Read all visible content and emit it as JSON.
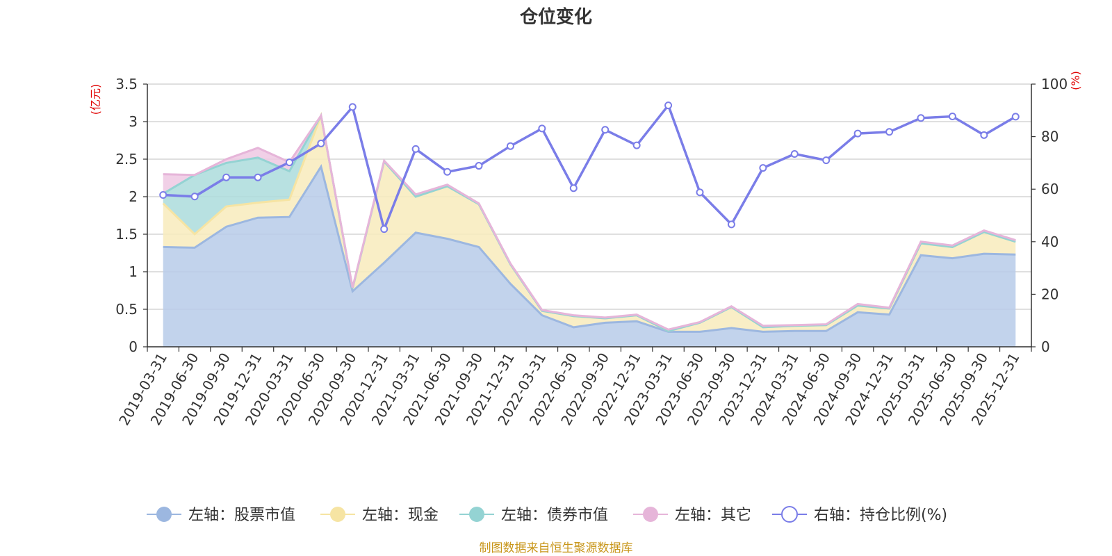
{
  "chart_data": {
    "type": "area",
    "title": "仓位变化",
    "left_axis_unit": "(亿元)",
    "right_axis_unit": "(%)",
    "source": "制图数据来自恒生聚源数据库",
    "categories": [
      "2019-03-31",
      "2019-06-30",
      "2019-09-30",
      "2019-12-31",
      "2020-03-31",
      "2020-06-30",
      "2020-09-30",
      "2020-12-31",
      "2021-03-31",
      "2021-06-30",
      "2021-09-30",
      "2021-12-31",
      "2022-03-31",
      "2022-06-30",
      "2022-09-30",
      "2022-12-31",
      "2023-03-31",
      "2023-06-30",
      "2023-09-30",
      "2023-12-31",
      "2024-03-31",
      "2024-06-30",
      "2024-09-30",
      "2024-12-31",
      "2025-03-31",
      "2025-06-30",
      "2025-09-30",
      "2025-12-31"
    ],
    "left_ylim": [
      0,
      3.5
    ],
    "left_yticks": [
      "0",
      "0.5",
      "1",
      "1.5",
      "2",
      "2.5",
      "3",
      "3.5"
    ],
    "right_ylim": [
      0,
      100
    ],
    "right_yticks": [
      "0",
      "20",
      "40",
      "60",
      "80",
      "100"
    ],
    "grid": true,
    "legend_position": "bottom",
    "series": [
      {
        "name": "左轴：股票市值",
        "axis": "left",
        "kind": "stacked-area",
        "color": "#9cb7e0",
        "fill": "#b7cbe9",
        "values": [
          1.33,
          1.32,
          1.6,
          1.72,
          1.73,
          2.4,
          0.74,
          1.12,
          1.52,
          1.44,
          1.33,
          0.84,
          0.42,
          0.26,
          0.32,
          0.34,
          0.2,
          0.2,
          0.25,
          0.2,
          0.21,
          0.21,
          0.46,
          0.43,
          1.22,
          1.18,
          1.24,
          1.23
        ]
      },
      {
        "name": "左轴：现金",
        "axis": "left",
        "kind": "stacked-area",
        "color": "#f6e4a3",
        "fill": "#f8ebbc",
        "values": [
          0.58,
          0.18,
          0.27,
          0.2,
          0.23,
          0.68,
          0.04,
          1.35,
          0.48,
          0.7,
          0.57,
          0.26,
          0.06,
          0.15,
          0.06,
          0.08,
          0.01,
          0.12,
          0.28,
          0.06,
          0.07,
          0.08,
          0.09,
          0.08,
          0.16,
          0.15,
          0.29,
          0.17
        ]
      },
      {
        "name": "左轴：债券市值",
        "axis": "left",
        "kind": "stacked-area",
        "color": "#94d3d3",
        "fill": "#acdcdc",
        "values": [
          0.13,
          0.79,
          0.58,
          0.6,
          0.38,
          0,
          0,
          0,
          0,
          0,
          0,
          0,
          0,
          0,
          0,
          0,
          0,
          0,
          0,
          0,
          0,
          0,
          0,
          0,
          0,
          0,
          0,
          0
        ]
      },
      {
        "name": "左轴：其它",
        "axis": "left",
        "kind": "stacked-area",
        "color": "#e6b5d9",
        "fill": "#efc8e3",
        "values": [
          0.26,
          0.0,
          0.05,
          0.13,
          0.12,
          0.0,
          0.01,
          0.01,
          0.03,
          0.02,
          0.01,
          0.01,
          0.01,
          0.01,
          0.01,
          0.01,
          0.02,
          0.01,
          0.01,
          0.02,
          0.01,
          0.01,
          0.02,
          0.01,
          0.02,
          0.02,
          0.02,
          0.02
        ]
      },
      {
        "name": "右轴：持仓比例(%)",
        "axis": "right",
        "kind": "line",
        "color": "#7a7de8",
        "values": [
          57.8,
          57.2,
          64.5,
          64.5,
          70.2,
          77.4,
          91.3,
          44.8,
          75.3,
          66.6,
          68.9,
          76.4,
          83.1,
          60.4,
          82.6,
          76.7,
          91.9,
          58.8,
          46.6,
          68.1,
          73.4,
          71.0,
          81.2,
          81.8,
          87.1,
          87.7,
          80.6,
          87.6
        ]
      }
    ]
  }
}
